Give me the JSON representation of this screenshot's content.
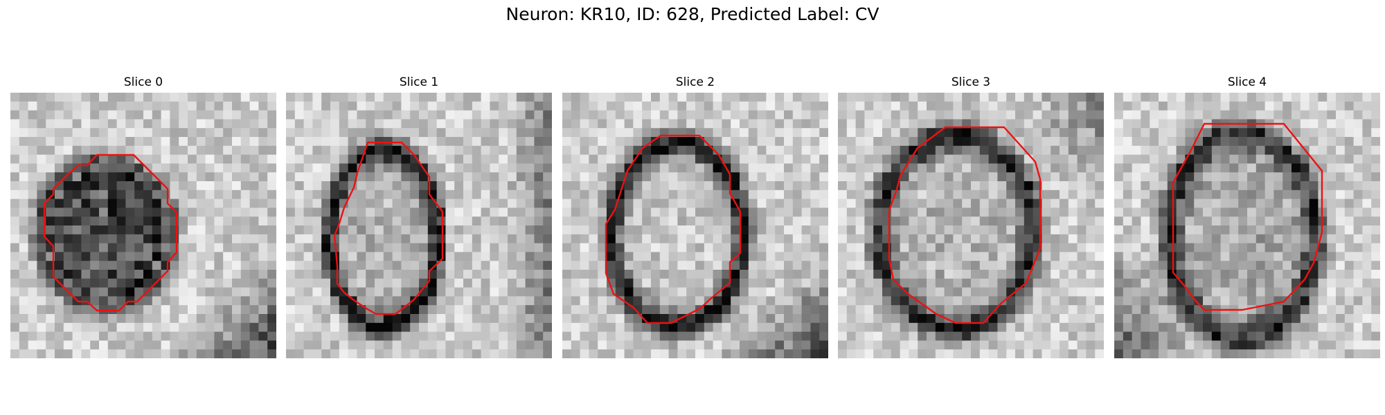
{
  "figure": {
    "title": "Neuron: KR10, ID: 628, Predicted Label: CV"
  },
  "contour_color": "#ee1111",
  "panels": [
    {
      "title": "Slice 0",
      "seed": 11,
      "ring_darkness": 0.55,
      "interior_darkness": 0.55,
      "shadow": "bottom-right"
    },
    {
      "title": "Slice 1",
      "seed": 23,
      "ring_darkness": 0.85,
      "interior_darkness": 0.12,
      "shadow": "right"
    },
    {
      "title": "Slice 2",
      "seed": 37,
      "ring_darkness": 0.8,
      "interior_darkness": 0.02,
      "shadow": "bottom-right"
    },
    {
      "title": "Slice 3",
      "seed": 49,
      "ring_darkness": 0.75,
      "interior_darkness": 0.1,
      "shadow": "top-right"
    },
    {
      "title": "Slice 4",
      "seed": 61,
      "ring_darkness": 0.7,
      "interior_darkness": 0.15,
      "shadow": "bottom-left"
    }
  ]
}
